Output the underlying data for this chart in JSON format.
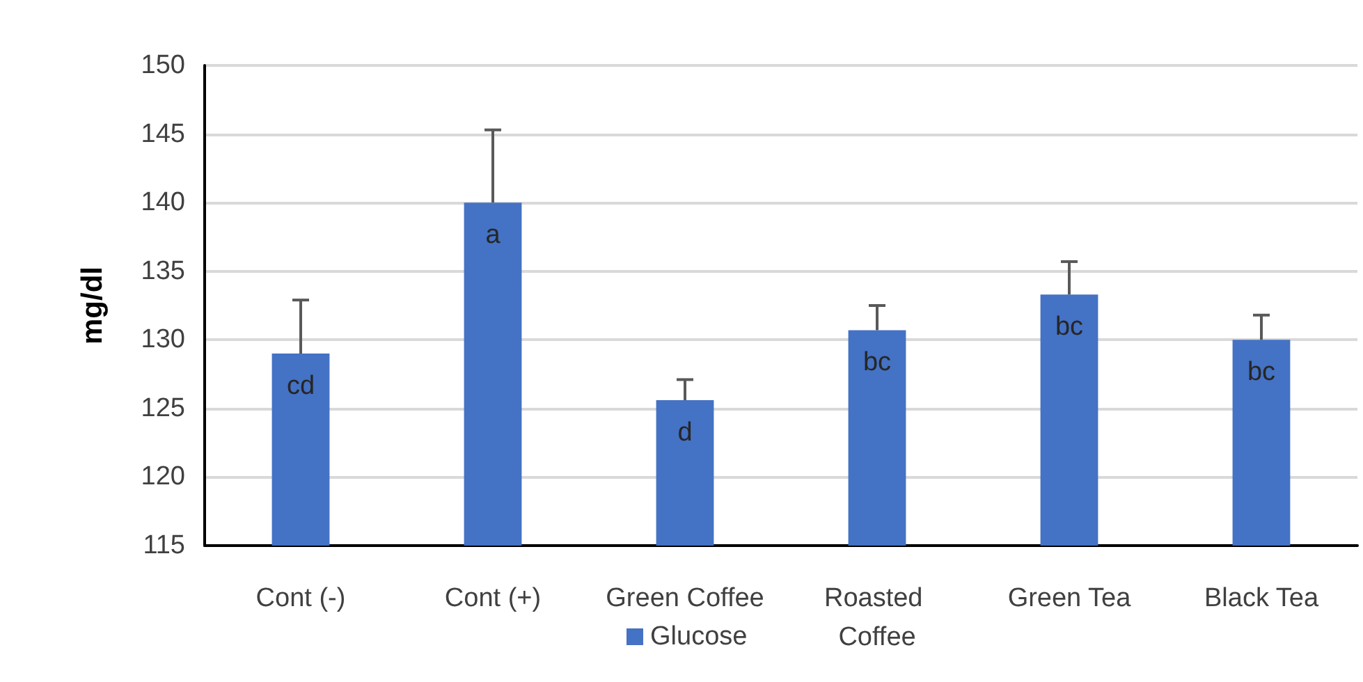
{
  "chart_data": {
    "type": "bar",
    "categories": [
      "Cont (-)",
      "Cont (+)",
      "Green Coffee",
      "Roasted Coffee",
      "Green Tea",
      "Black Tea"
    ],
    "series": [
      {
        "name": "Glucose",
        "color": "#4472c4",
        "values": [
          129,
          140,
          125.6,
          130.7,
          133.3,
          130
        ],
        "errors": [
          [
            129,
            132.9
          ],
          [
            140,
            145.3
          ],
          [
            125.6,
            127.1
          ],
          [
            130.7,
            132.5
          ],
          [
            133.3,
            135.7
          ],
          [
            130,
            131.8
          ]
        ],
        "value_labels": [
          "cd",
          "a",
          "d",
          "bc",
          "bc",
          "bc"
        ]
      }
    ],
    "ylabel": "mg/dl",
    "ylim": [
      115,
      150
    ],
    "yticks": [
      115,
      120,
      125,
      130,
      135,
      140,
      145,
      150
    ],
    "grid": "y",
    "legend": "bottom"
  }
}
